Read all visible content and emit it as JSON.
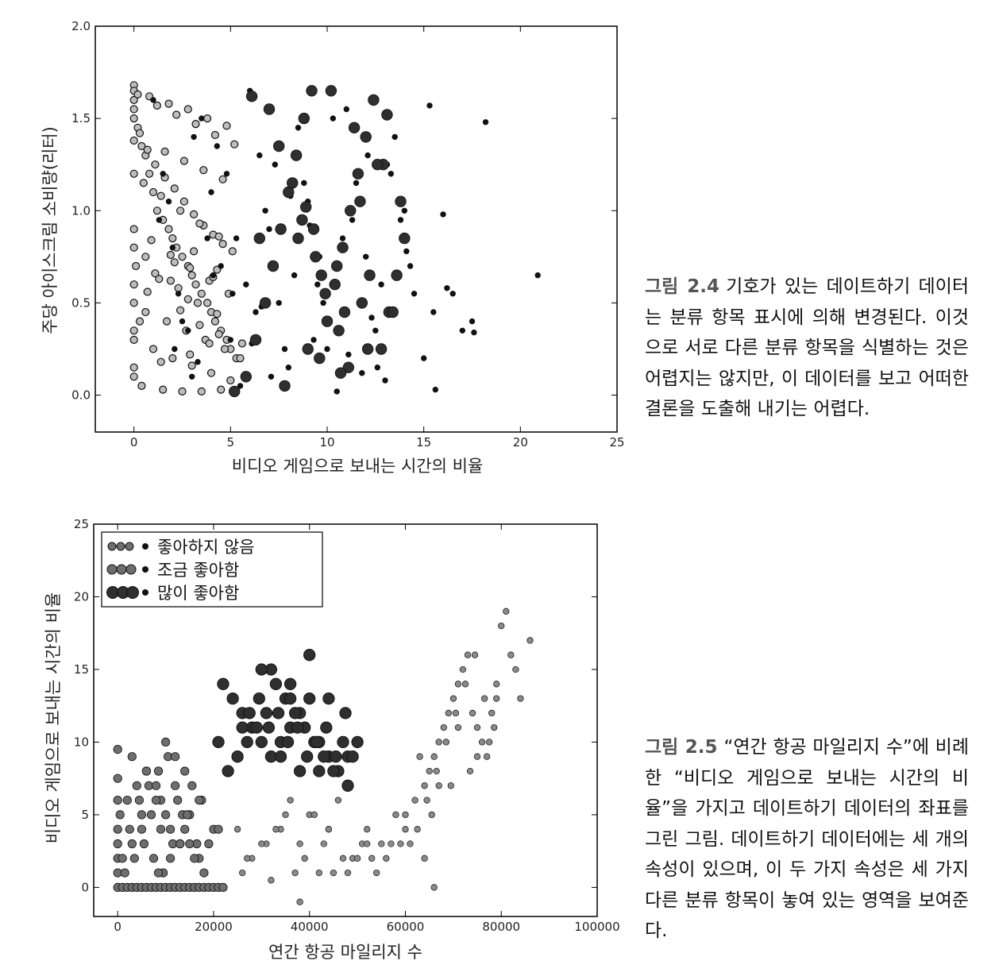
{
  "colors": {
    "nodislike": "#bdbdbd",
    "small": "#6e6e6e",
    "large": "#2f2f2f",
    "edge": "#111111"
  },
  "captions": [
    {
      "fig": "그림 2.4",
      "text": "기호가 있는 데이트하기 데이터는 분류 항목 표시에 의해 변경된다. 이것으로 서로 다른 분류 항목을 식별하는 것은 어렵지는 않지만, 이 데이터를 보고 어떠한 결론을 도출해 내기는 어렵다."
    },
    {
      "fig": "그림 2.5",
      "text": "“연간 항공 마일리지 수”에 비례한 “비디오 게임으로 보내는 시간의 비율”을 가지고 데이트하기 데이터의 좌표를 그린 그림. 데이트하기 데이터에는 세 개의 속성이 있으며, 이 두 가지 속성은 세 가지 다른 분류 항목이 놓여 있는 영역을 보여준다."
    }
  ],
  "chart_data": [
    {
      "type": "scatter",
      "title": "",
      "xlabel": "비디오 게임으로 보내는 시간의 비율",
      "ylabel": "주당 아이스크림 소비량(리터)",
      "xlim": [
        -2,
        25
      ],
      "ylim": [
        -0.2,
        2.0
      ],
      "xticks": [
        "0",
        "5",
        "10",
        "15",
        "20",
        "25"
      ],
      "yticks": [
        "0.0",
        "0.5",
        "1.0",
        "1.5",
        "2.0"
      ],
      "xtick_values": [
        0,
        5,
        10,
        15,
        20,
        25
      ],
      "ytick_values": [
        0.0,
        0.5,
        1.0,
        1.5,
        2.0
      ],
      "grid": false,
      "marker_scheme": "light ring = 좋아하지 않음, small black = 조금 좋아함, large black = 많이 좋아함",
      "series": [
        {
          "class": "didntLike",
          "x": [
            0,
            0,
            0,
            0.2,
            0.4,
            0.6,
            0.8,
            1,
            1.2,
            1.5,
            1.8,
            2,
            2.2,
            2.5,
            2.8,
            3,
            3.2,
            3.5,
            3.8,
            4,
            4.2,
            4.5,
            4.8,
            5,
            5.3,
            0,
            0.3,
            0.7,
            1.1,
            1.6,
            2.1,
            2.6,
            3.1,
            3.6,
            4.1,
            4.6,
            5.1,
            0,
            0.5,
            1.4,
            2.4,
            3.4,
            4.4,
            0,
            0.9,
            1.9,
            2.9,
            3.9,
            4.9,
            0.1,
            1.3,
            2.3,
            3.3,
            4.3,
            0,
            0.6,
            1.7,
            2.7,
            3.7,
            4.7,
            5.5,
            0,
            1,
            2,
            3,
            4,
            5,
            0,
            0.4,
            1.5,
            2.5,
            3.5,
            4.5,
            0,
            0.8,
            1.8,
            2.8,
            3.8,
            4.8,
            0.2,
            1.2,
            2.2,
            3.2,
            4.2,
            5.2,
            0,
            1.6,
            2.6,
            3.6,
            4.6,
            0,
            0.7,
            1.1,
            2.1,
            3.1,
            4.1,
            0,
            0.3,
            2.4,
            3.4,
            4.4,
            5.6,
            0,
            1.4,
            2.9,
            3.9,
            0,
            0.6,
            1.9,
            2.8,
            4.3
          ],
          "y": [
            1.68,
            1.6,
            1.55,
            1.45,
            1.35,
            1.3,
            1.2,
            1.1,
            1,
            0.95,
            0.9,
            0.85,
            0.8,
            0.75,
            0.7,
            0.65,
            0.6,
            0.55,
            0.5,
            0.45,
            0.4,
            0.35,
            0.3,
            0.25,
            0.2,
            1.5,
            1.42,
            1.33,
            1.25,
            1.18,
            1.12,
            1.05,
            0.98,
            0.92,
            0.87,
            0.82,
            0.78,
            1.2,
            1.15,
            1.08,
            1.0,
            0.93,
            0.86,
            0.9,
            0.84,
            0.76,
            0.69,
            0.62,
            0.55,
            0.7,
            0.63,
            0.58,
            0.5,
            0.44,
            0.5,
            0.45,
            0.4,
            0.35,
            0.3,
            0.25,
            0.2,
            0.3,
            0.25,
            0.2,
            0.16,
            0.12,
            0.08,
            0.1,
            0.05,
            0.03,
            0.02,
            0.02,
            0.03,
            1.65,
            1.62,
            1.58,
            1.55,
            1.5,
            1.46,
            1.63,
            1.57,
            1.52,
            1.47,
            1.41,
            1.36,
            1.38,
            1.32,
            1.27,
            1.22,
            1.17,
            0.6,
            0.56,
            0.66,
            0.72,
            0.78,
            0.64,
            0.35,
            0.4,
            0.46,
            0.38,
            0.33,
            0.28,
            0.15,
            0.18,
            0.22,
            0.28,
            0.8,
            0.75,
            0.62,
            0.52,
            0.68
          ]
        },
        {
          "class": "smallDoses",
          "x": [
            1,
            1.5,
            2,
            2.5,
            3,
            3.5,
            4,
            4.5,
            5,
            5.5,
            6,
            6.5,
            7,
            7.5,
            8,
            8.5,
            9,
            9.5,
            10,
            10.5,
            11,
            11.5,
            12,
            12.5,
            13,
            13.5,
            14,
            14.5,
            15,
            15.5,
            16,
            16.5,
            17,
            17.5,
            18.2,
            20.9,
            1.3,
            2.3,
            3.3,
            4.3,
            5.3,
            6.3,
            7.3,
            8.3,
            9.3,
            10.3,
            11.3,
            12.3,
            13.3,
            14.3,
            15.3,
            2.8,
            3.8,
            4.8,
            5.8,
            6.8,
            7.8,
            8.8,
            9.8,
            10.8,
            11.8,
            12.8,
            13.8,
            1.8,
            4.1,
            6.1,
            8.1,
            10.1,
            12.1,
            14.1,
            15.6,
            2.1,
            5.1,
            7.1,
            9.1,
            11.1,
            13.1,
            16.2,
            17.6,
            3.1,
            6.6,
            9.6,
            12.6
          ],
          "y": [
            1.6,
            1.2,
            0.8,
            0.4,
            0.1,
            1.5,
            1.1,
            0.7,
            0.3,
            0.05,
            1.65,
            1.3,
            0.9,
            0.5,
            0.15,
            1.45,
            1.05,
            0.6,
            0.25,
            0.02,
            1.55,
            1.15,
            0.75,
            0.35,
            0.08,
            1.4,
            1.0,
            0.55,
            0.2,
            0.45,
            0.98,
            0.55,
            0.35,
            0.4,
            1.48,
            0.65,
            0.95,
            0.55,
            0.18,
            1.35,
            0.85,
            0.45,
            1.25,
            0.65,
            0.3,
            1.5,
            0.95,
            0.42,
            1.2,
            0.7,
            1.57,
            0.35,
            0.85,
            1.2,
            0.6,
            1.0,
            0.25,
            1.15,
            0.5,
            0.85,
            0.12,
            0.6,
            0.95,
            1.05,
            0.65,
            0.28,
            1.08,
            0.4,
            1.3,
            0.78,
            0.03,
            0.25,
            0.55,
            0.1,
            0.92,
            0.22,
            1.25,
            0.58,
            0.34,
            1.4,
            0.48,
            0.75,
            0.15
          ]
        },
        {
          "class": "largeDoses",
          "x": [
            5.2,
            5.8,
            6.3,
            6.8,
            7.2,
            7.6,
            8,
            8.4,
            8.8,
            9.2,
            9.6,
            10,
            10.4,
            10.8,
            11.2,
            11.6,
            12,
            12.4,
            12.8,
            13.2,
            13.6,
            14,
            7,
            7.5,
            8.2,
            8.7,
            9.4,
            9.9,
            10.6,
            11.1,
            11.7,
            12.2,
            12.9,
            13.4,
            6.5,
            7.8,
            9,
            10.2,
            11.4,
            12.6,
            13.8,
            8.5,
            9.7,
            10.9,
            12.1,
            9.3,
            10.5,
            11.8,
            6.1,
            8.9,
            10.7,
            13.1
          ],
          "y": [
            0.02,
            0.1,
            0.3,
            0.5,
            0.7,
            0.9,
            1.1,
            1.3,
            1.5,
            1.65,
            0.2,
            0.4,
            0.6,
            0.8,
            1.0,
            1.2,
            1.4,
            1.6,
            0.25,
            0.45,
            0.65,
            0.85,
            1.55,
            1.35,
            1.15,
            0.95,
            0.75,
            0.55,
            0.35,
            0.15,
            1.05,
            0.65,
            1.25,
            0.45,
            0.85,
            0.05,
            0.25,
            1.65,
            1.45,
            1.25,
            1.05,
            0.85,
            0.65,
            0.45,
            0.25,
            0.9,
            0.7,
            0.5,
            1.62,
            1.02,
            0.12,
            1.52
          ]
        }
      ]
    },
    {
      "type": "scatter",
      "title": "",
      "xlabel": "연간 항공 마일리지 수",
      "ylabel": "비디오 게임으로 보내는 시간의 비율",
      "xlim": [
        -5000,
        100000
      ],
      "ylim": [
        -2,
        25
      ],
      "xticks": [
        "0",
        "20000",
        "40000",
        "60000",
        "80000",
        "100000"
      ],
      "yticks": [
        "0",
        "5",
        "10",
        "15",
        "20",
        "25"
      ],
      "xtick_values": [
        0,
        20000,
        40000,
        60000,
        80000,
        100000
      ],
      "ytick_values": [
        0,
        5,
        10,
        15,
        20,
        25
      ],
      "grid": false,
      "legend_position": "top-left",
      "legend": [
        "좋아하지 않음",
        "조금 좋아함",
        "많이 좋아함"
      ],
      "series": [
        {
          "name": "좋아하지 않음",
          "x": [
            60000,
            62000,
            64000,
            65000,
            66000,
            67000,
            68000,
            69000,
            70000,
            71000,
            72000,
            73000,
            74000,
            75000,
            76000,
            77000,
            78000,
            79000,
            80000,
            81000,
            82000,
            83000,
            84000,
            86000,
            62500,
            64500,
            66500,
            68500,
            70500,
            72500,
            74500,
            76500,
            78500,
            63000,
            67000,
            71000,
            75000,
            79000,
            61000,
            65500,
            69500,
            73500,
            77500,
            25000,
            28000,
            31000,
            34000,
            37000,
            40000,
            43000,
            46000,
            49000,
            52000,
            55000,
            58000,
            26000,
            30000,
            35000,
            39000,
            44000,
            48000,
            53000,
            57000,
            27000,
            33000,
            38000,
            42000,
            47000,
            51000,
            56000,
            60000,
            66000,
            38000,
            45000,
            50000,
            54000,
            59000,
            64000,
            32000,
            41000,
            36000,
            44000,
            52000
          ],
          "y": [
            5,
            6,
            7,
            8,
            9,
            10,
            11,
            12,
            13,
            14,
            15,
            16,
            12,
            11,
            10,
            9,
            12,
            14,
            18,
            19,
            16,
            15,
            13,
            17,
            4,
            6,
            8,
            10,
            12,
            14,
            16,
            13,
            11,
            9,
            7,
            11,
            9,
            13,
            3,
            5,
            7,
            8,
            10,
            4,
            2,
            3,
            4,
            1,
            5,
            3,
            6,
            2,
            4,
            3,
            5,
            1,
            3,
            5,
            2,
            4,
            1,
            2,
            3,
            2,
            4,
            3,
            1,
            2,
            3,
            2,
            4,
            0,
            -1,
            1,
            2,
            1,
            3,
            2,
            0.5,
            5,
            6,
            4,
            3
          ]
        },
        {
          "name": "조금 좋아함",
          "x": [
            0,
            0,
            0,
            0,
            0,
            0,
            0,
            0,
            1000,
            2000,
            3000,
            4000,
            5000,
            6000,
            7000,
            8000,
            9000,
            10000,
            11000,
            12000,
            13000,
            14000,
            15000,
            16000,
            17000,
            18000,
            19000,
            20000,
            21000,
            22000,
            1000,
            3000,
            5000,
            7000,
            9000,
            11000,
            13000,
            15000,
            17000,
            19000,
            2000,
            4000,
            6000,
            8000,
            10000,
            12000,
            14000,
            16000,
            18000,
            20000,
            1500,
            3500,
            5500,
            7500,
            9500,
            11500,
            13500,
            15500,
            17500,
            500,
            2500,
            4500,
            6500,
            8500,
            10500,
            12500,
            14500,
            16500,
            6000,
            8000,
            10000,
            12000,
            14000,
            3000,
            5000,
            9000,
            13000,
            17000,
            21000,
            8500,
            11000,
            15000
          ],
          "y": [
            9.5,
            7.5,
            3,
            1,
            0,
            2,
            4,
            6,
            0,
            0,
            0,
            0,
            0,
            0,
            0,
            0,
            0,
            0,
            0,
            0,
            0,
            0,
            0,
            0,
            0,
            0,
            0,
            0,
            0,
            0,
            2,
            3,
            4,
            5,
            6,
            4,
            3,
            5,
            2,
            3,
            6,
            7,
            8,
            6,
            5,
            7,
            4,
            2,
            1,
            4,
            1,
            2,
            3,
            2,
            1,
            3,
            5,
            7,
            6,
            5,
            4,
            6,
            7,
            8,
            9,
            6,
            5,
            3,
            8,
            7,
            10,
            9,
            8,
            9,
            5,
            4,
            3,
            6,
            4,
            1,
            2,
            3
          ]
        },
        {
          "name": "많이 좋아함",
          "x": [
            22000,
            24000,
            26000,
            28000,
            30000,
            32000,
            34000,
            36000,
            38000,
            40000,
            42000,
            44000,
            46000,
            48000,
            50000,
            23000,
            25000,
            27000,
            29000,
            31000,
            33000,
            35000,
            37000,
            39000,
            41000,
            43000,
            45000,
            47000,
            49000,
            27500,
            31500,
            35500,
            39500,
            43500,
            47500,
            29500,
            33500,
            37500,
            41500,
            45500,
            32000,
            36000,
            40000,
            44000,
            21000,
            26000,
            34000,
            38000,
            42000,
            48000,
            30000,
            36000
          ],
          "y": [
            14,
            13,
            12,
            11,
            10,
            9,
            10,
            11,
            12,
            13,
            10,
            9,
            8,
            9,
            10,
            8,
            9,
            10,
            11,
            12,
            14,
            13,
            12,
            11,
            10,
            9,
            8,
            10,
            9,
            12,
            11,
            10,
            9,
            11,
            12,
            13,
            12,
            11,
            10,
            9,
            15,
            14,
            16,
            13,
            10,
            11,
            9,
            8,
            8,
            7,
            15,
            13
          ]
        }
      ]
    }
  ]
}
